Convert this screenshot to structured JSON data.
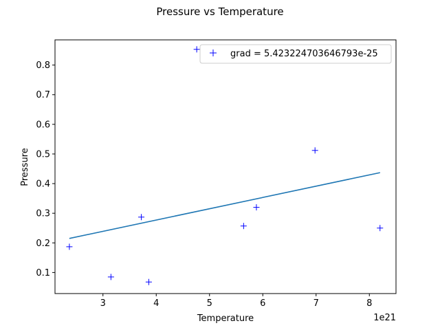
{
  "chart_data": {
    "type": "scatter",
    "title": "Pressure vs Temperature",
    "xlabel": "Temperature",
    "ylabel": "Pressure",
    "x_offset_label": "1e21",
    "xlim": [
      2.1,
      8.5
    ],
    "ylim": [
      0.029,
      0.885
    ],
    "x_ticks": [
      3,
      4,
      5,
      6,
      7,
      8
    ],
    "y_ticks": [
      0.1,
      0.2,
      0.3,
      0.4,
      0.5,
      0.6,
      0.7,
      0.8
    ],
    "x_tick_labels": [
      "3",
      "4",
      "5",
      "6",
      "7",
      "8"
    ],
    "y_tick_labels": [
      "0.1",
      "0.2",
      "0.3",
      "0.4",
      "0.5",
      "0.6",
      "0.7",
      "0.8"
    ],
    "grid": false,
    "legend_position": "top-right",
    "series": [
      {
        "name": "grad = 5.423224703646793e-25",
        "kind": "scatter",
        "marker": "+",
        "color": "#0000ff",
        "points": [
          {
            "x": 2.37,
            "y": 0.187
          },
          {
            "x": 3.15,
            "y": 0.085
          },
          {
            "x": 3.72,
            "y": 0.287
          },
          {
            "x": 3.86,
            "y": 0.068
          },
          {
            "x": 4.76,
            "y": 0.853
          },
          {
            "x": 5.64,
            "y": 0.257
          },
          {
            "x": 5.88,
            "y": 0.32
          },
          {
            "x": 6.98,
            "y": 0.512
          },
          {
            "x": 8.2,
            "y": 0.25
          }
        ]
      },
      {
        "kind": "line",
        "color": "#1f77b4",
        "points": [
          {
            "x": 2.37,
            "y": 0.215
          },
          {
            "x": 8.2,
            "y": 0.437
          }
        ]
      }
    ]
  }
}
